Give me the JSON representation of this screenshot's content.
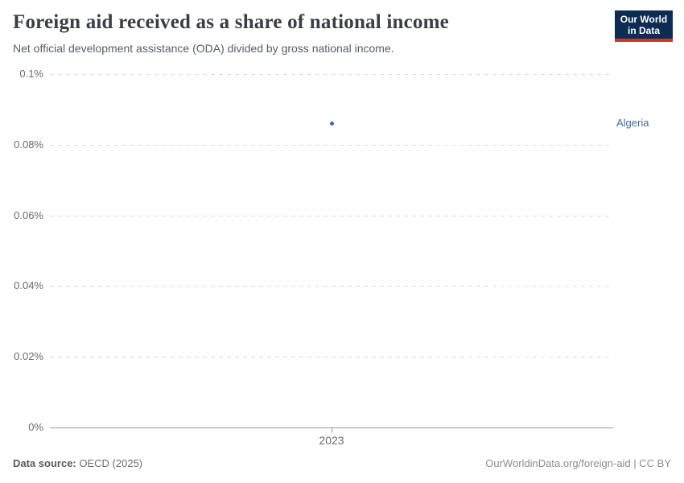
{
  "header": {
    "title": "Foreign aid received as a share of national income",
    "subtitle": "Net official development assistance (ODA) divided by gross national income.",
    "logo": {
      "line1": "Our World",
      "line2": "in Data",
      "bg_color": "#0d2c54",
      "accent_color": "#d0342c"
    }
  },
  "chart_data": {
    "type": "scatter",
    "title": "Foreign aid received as a share of national income",
    "subtitle": "Net official development assistance (ODA) divided by gross national income.",
    "series": [
      {
        "name": "Algeria",
        "color": "#44689d",
        "points": [
          {
            "x": 2023,
            "y": 0.086
          }
        ]
      }
    ],
    "x_ticks": [
      {
        "value": 2023,
        "label": "2023"
      }
    ],
    "y_ticks": [
      {
        "value": 0,
        "label": "0%"
      },
      {
        "value": 0.02,
        "label": "0.02%"
      },
      {
        "value": 0.04,
        "label": "0.04%"
      },
      {
        "value": 0.06,
        "label": "0.06%"
      },
      {
        "value": 0.08,
        "label": "0.08%"
      },
      {
        "value": 0.1,
        "label": "0.1%"
      }
    ],
    "ylim": [
      0,
      0.1
    ],
    "xlabel": "",
    "ylabel": "",
    "y_unit": "%",
    "grid": "horizontal-dashed",
    "legend": "entity-label-right-of-plot"
  },
  "footer": {
    "data_source_label": "Data source:",
    "data_source_value": "OECD (2025)",
    "license": "OurWorldinData.org/foreign-aid | CC BY"
  }
}
